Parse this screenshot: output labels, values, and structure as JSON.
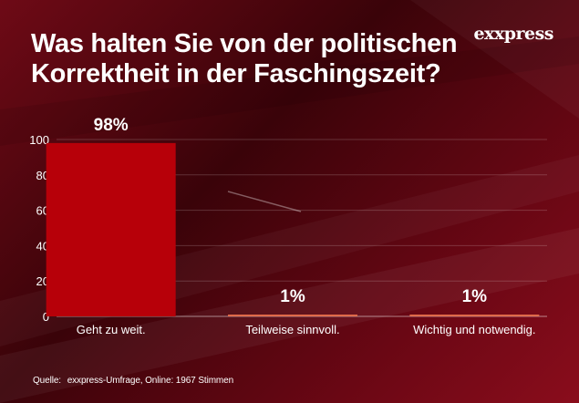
{
  "title": "Was halten Sie von der politischen Korrektheit in der Faschingszeit?",
  "logo": "exxpress",
  "source_label": "Quelle:",
  "source_text": "exxpress-Umfrage, Online: 1967 Stimmen",
  "colors": {
    "bar_main": "#b70009",
    "bar_minor": "#e06a4a",
    "text": "#ffffff"
  },
  "chart_data": {
    "type": "bar",
    "categories": [
      "Geht zu weit.",
      "Teilweise sinnvoll.",
      "Wichtig und notwendig."
    ],
    "values": [
      98,
      1,
      1
    ],
    "value_labels": [
      "98%",
      "1%",
      "1%"
    ],
    "ylim": [
      0,
      100
    ],
    "yticks": [
      0,
      20,
      40,
      60,
      80,
      100
    ],
    "grid": true
  }
}
